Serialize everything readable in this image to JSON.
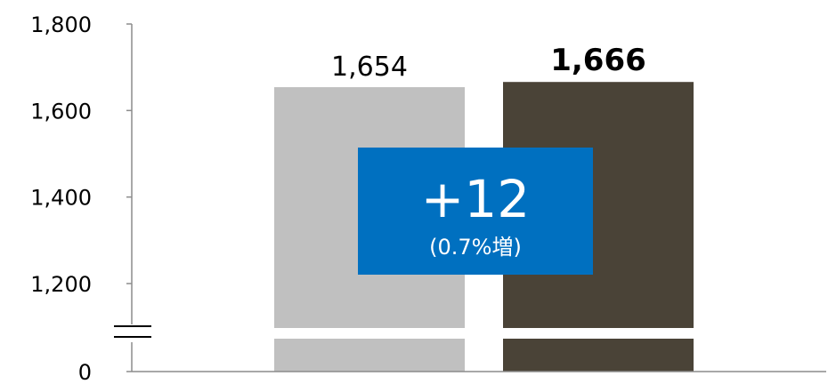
{
  "chart_data": {
    "type": "bar",
    "categories": [
      "",
      ""
    ],
    "values": [
      1654,
      1666
    ],
    "value_labels": [
      "1,654",
      "1,666"
    ],
    "value_label_bold": [
      false,
      true
    ],
    "colors": [
      "#c0c0c0",
      "#4a4337"
    ],
    "title": "",
    "xlabel": "",
    "ylabel": "",
    "ylim": [
      1200,
      1800
    ],
    "axis_break": true,
    "y_ticks": [
      {
        "value": 0,
        "label": "0"
      },
      {
        "value": 1200,
        "label": "1,200"
      },
      {
        "value": 1400,
        "label": "1,400"
      },
      {
        "value": 1600,
        "label": "1,600"
      },
      {
        "value": 1800,
        "label": "1,800"
      }
    ],
    "grid": false,
    "annotation": {
      "main": "+12",
      "sub": "(0.7%増)",
      "color": "#0070c0"
    }
  }
}
